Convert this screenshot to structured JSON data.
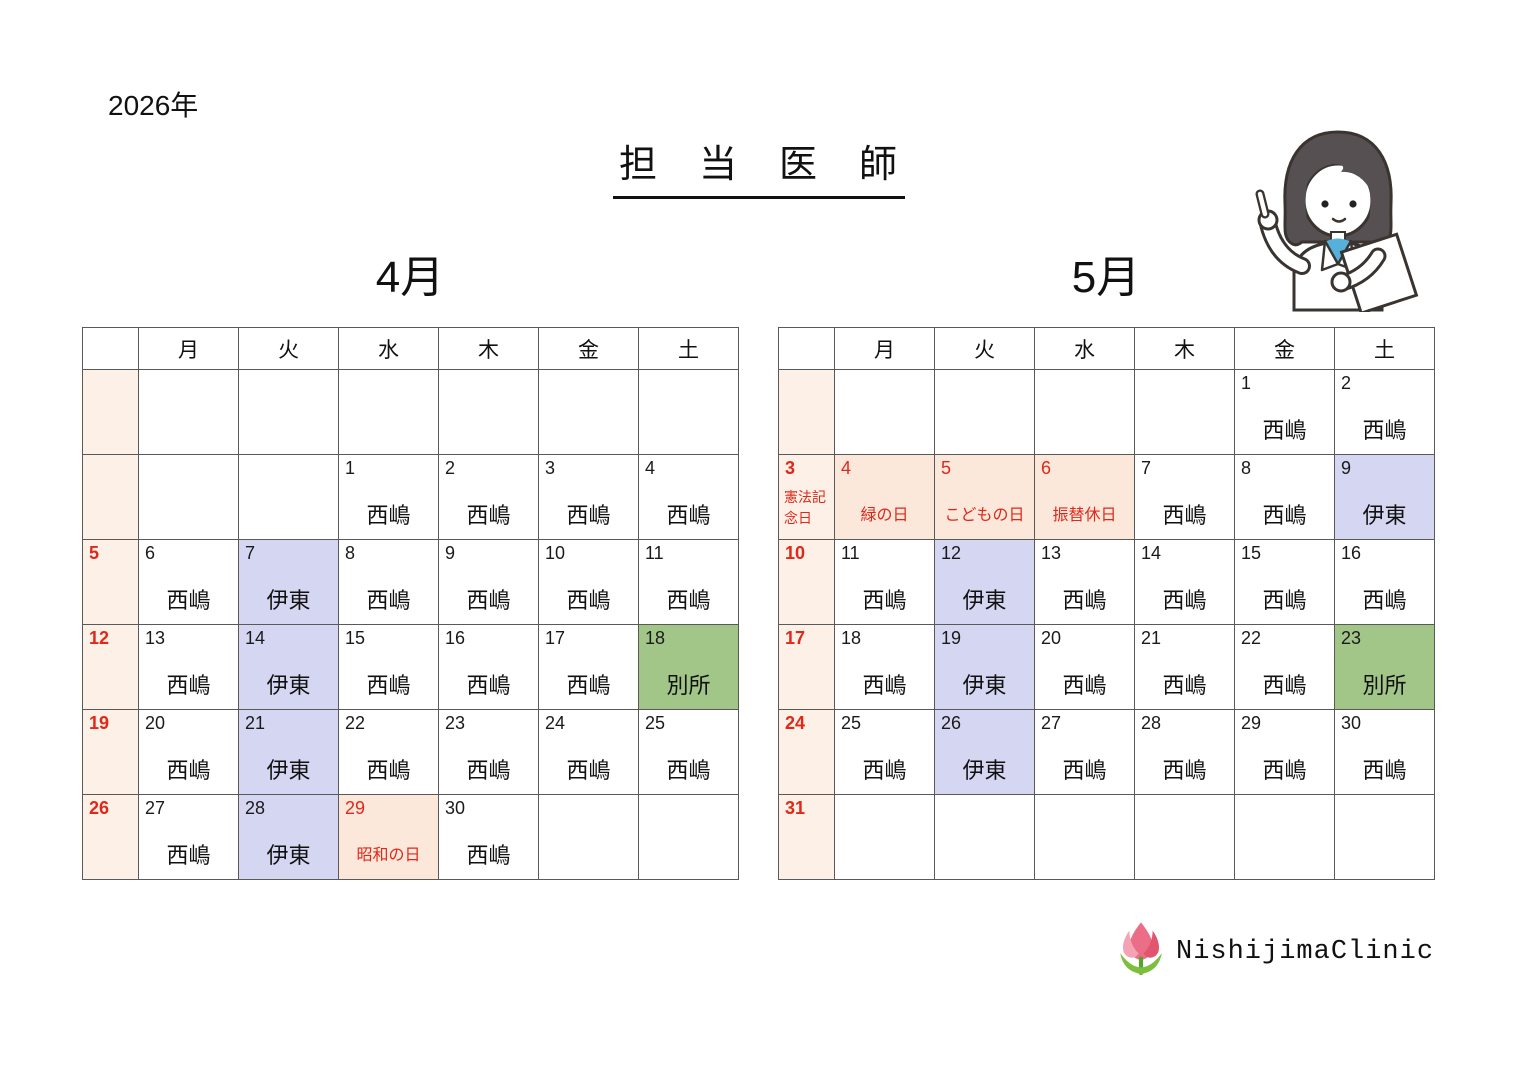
{
  "page": {
    "year_label": "2026年",
    "title": "担　当　医　師"
  },
  "calendars": [
    {
      "month_label": "4月",
      "weekdays": [
        "",
        "月",
        "火",
        "水",
        "木",
        "金",
        "土"
      ],
      "rows": [
        [
          {
            "bg": "sun"
          },
          {},
          {},
          {},
          {},
          {},
          {}
        ],
        [
          {
            "bg": "sun"
          },
          {},
          {},
          {
            "day": "1",
            "text": "西嶋"
          },
          {
            "day": "2",
            "text": "西嶋"
          },
          {
            "day": "3",
            "text": "西嶋"
          },
          {
            "day": "4",
            "text": "西嶋"
          }
        ],
        [
          {
            "bg": "sun",
            "day": "5",
            "dayRed": true,
            "dayBold": true
          },
          {
            "day": "6",
            "text": "西嶋"
          },
          {
            "day": "7",
            "text": "伊東",
            "bg": "blue"
          },
          {
            "day": "8",
            "text": "西嶋"
          },
          {
            "day": "9",
            "text": "西嶋"
          },
          {
            "day": "10",
            "text": "西嶋"
          },
          {
            "day": "11",
            "text": "西嶋"
          }
        ],
        [
          {
            "bg": "sun",
            "day": "12",
            "dayRed": true,
            "dayBold": true
          },
          {
            "day": "13",
            "text": "西嶋"
          },
          {
            "day": "14",
            "text": "伊東",
            "bg": "blue"
          },
          {
            "day": "15",
            "text": "西嶋"
          },
          {
            "day": "16",
            "text": "西嶋"
          },
          {
            "day": "17",
            "text": "西嶋"
          },
          {
            "day": "18",
            "text": "別所",
            "bg": "green"
          }
        ],
        [
          {
            "bg": "sun",
            "day": "19",
            "dayRed": true,
            "dayBold": true
          },
          {
            "day": "20",
            "text": "西嶋"
          },
          {
            "day": "21",
            "text": "伊東",
            "bg": "blue"
          },
          {
            "day": "22",
            "text": "西嶋"
          },
          {
            "day": "23",
            "text": "西嶋"
          },
          {
            "day": "24",
            "text": "西嶋"
          },
          {
            "day": "25",
            "text": "西嶋"
          }
        ],
        [
          {
            "bg": "sun",
            "day": "26",
            "dayRed": true,
            "dayBold": true
          },
          {
            "day": "27",
            "text": "西嶋"
          },
          {
            "day": "28",
            "text": "伊東",
            "bg": "blue"
          },
          {
            "day": "29",
            "dayRed": true,
            "text": "昭和の日",
            "textRed": true,
            "small": true,
            "bg": "pink"
          },
          {
            "day": "30",
            "text": "西嶋"
          },
          {},
          {}
        ]
      ]
    },
    {
      "month_label": "5月",
      "weekdays": [
        "",
        "月",
        "火",
        "水",
        "木",
        "金",
        "土"
      ],
      "rows": [
        [
          {
            "bg": "sun"
          },
          {},
          {},
          {},
          {},
          {
            "day": "1",
            "text": "西嶋"
          },
          {
            "day": "2",
            "text": "西嶋"
          }
        ],
        [
          {
            "bg": "sun",
            "day": "3",
            "dayRed": true,
            "dayBold": true,
            "text": "憲法記念日",
            "textRed": true,
            "small": true
          },
          {
            "day": "4",
            "dayRed": true,
            "text": "緑の日",
            "textRed": true,
            "small": true,
            "bg": "pink"
          },
          {
            "day": "5",
            "dayRed": true,
            "text": "こどもの日",
            "textRed": true,
            "small": true,
            "bg": "pink"
          },
          {
            "day": "6",
            "dayRed": true,
            "text": "振替休日",
            "textRed": true,
            "small": true,
            "bg": "pink"
          },
          {
            "day": "7",
            "text": "西嶋"
          },
          {
            "day": "8",
            "text": "西嶋"
          },
          {
            "day": "9",
            "text": "伊東",
            "bg": "blue"
          }
        ],
        [
          {
            "bg": "sun",
            "day": "10",
            "dayRed": true,
            "dayBold": true
          },
          {
            "day": "11",
            "text": "西嶋"
          },
          {
            "day": "12",
            "text": "伊東",
            "bg": "blue"
          },
          {
            "day": "13",
            "text": "西嶋"
          },
          {
            "day": "14",
            "text": "西嶋"
          },
          {
            "day": "15",
            "text": "西嶋"
          },
          {
            "day": "16",
            "text": "西嶋"
          }
        ],
        [
          {
            "bg": "sun",
            "day": "17",
            "dayRed": true,
            "dayBold": true
          },
          {
            "day": "18",
            "text": "西嶋"
          },
          {
            "day": "19",
            "text": "伊東",
            "bg": "blue"
          },
          {
            "day": "20",
            "text": "西嶋"
          },
          {
            "day": "21",
            "text": "西嶋"
          },
          {
            "day": "22",
            "text": "西嶋"
          },
          {
            "day": "23",
            "text": "別所",
            "bg": "green"
          }
        ],
        [
          {
            "bg": "sun",
            "day": "24",
            "dayRed": true,
            "dayBold": true
          },
          {
            "day": "25",
            "text": "西嶋"
          },
          {
            "day": "26",
            "text": "伊東",
            "bg": "blue"
          },
          {
            "day": "27",
            "text": "西嶋"
          },
          {
            "day": "28",
            "text": "西嶋"
          },
          {
            "day": "29",
            "text": "西嶋"
          },
          {
            "day": "30",
            "text": "西嶋"
          }
        ],
        [
          {
            "bg": "sun",
            "day": "31",
            "dayRed": true,
            "dayBold": true
          },
          {},
          {},
          {},
          {},
          {},
          {}
        ]
      ]
    }
  ],
  "footer": {
    "clinic_name": "NishijimaClinic"
  },
  "icons": {
    "logo": "tulip-icon",
    "mascot": "doctor-illustration"
  },
  "colors": {
    "sunday_column_bg": "#fdf0e6",
    "holiday_bg": "#fbe8da",
    "ito_bg": "#d4d6f2",
    "bessho_bg": "#a2c687",
    "holiday_red": "#e0281a",
    "grid_line": "#595959"
  }
}
